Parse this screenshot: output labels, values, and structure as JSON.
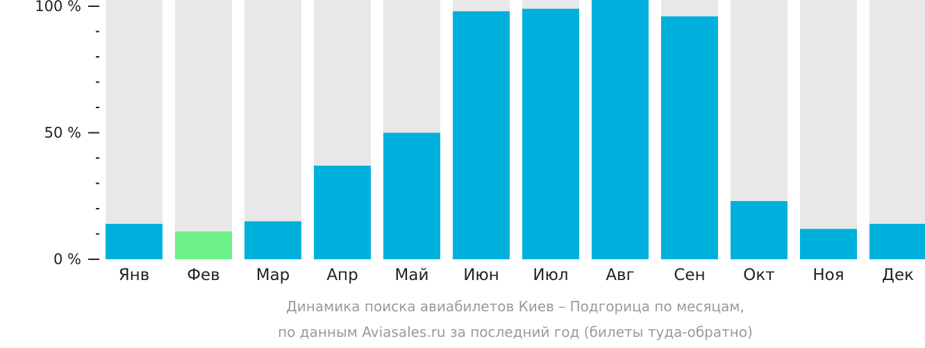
{
  "chart_data": {
    "type": "bar",
    "categories": [
      "Янв",
      "Фев",
      "Мар",
      "Апр",
      "Май",
      "Июн",
      "Июл",
      "Авг",
      "Сен",
      "Окт",
      "Ноя",
      "Дек"
    ],
    "values": [
      14,
      11,
      15,
      37,
      50,
      98,
      99,
      103,
      96,
      23,
      12,
      14
    ],
    "highlight_index": 1,
    "ylim": [
      0,
      103
    ],
    "y_ticks": [
      {
        "value": 0,
        "label": "0 %"
      },
      {
        "value": 50,
        "label": "50 %"
      },
      {
        "value": 100,
        "label": "100 %"
      }
    ],
    "y_minor_tick_step": 10,
    "grid": false,
    "caption_lines": [
      "Динамика поиска авиабилетов Киев – Подгорица по месяцам,",
      "по данным Aviasales.ru за последний год (билеты туда-обратно)"
    ]
  },
  "colors": {
    "bar": "#00b0dc",
    "highlight": "#6ef08a",
    "track": "#e8e8e8",
    "axis": "#222222",
    "caption": "#9a9a9a"
  }
}
